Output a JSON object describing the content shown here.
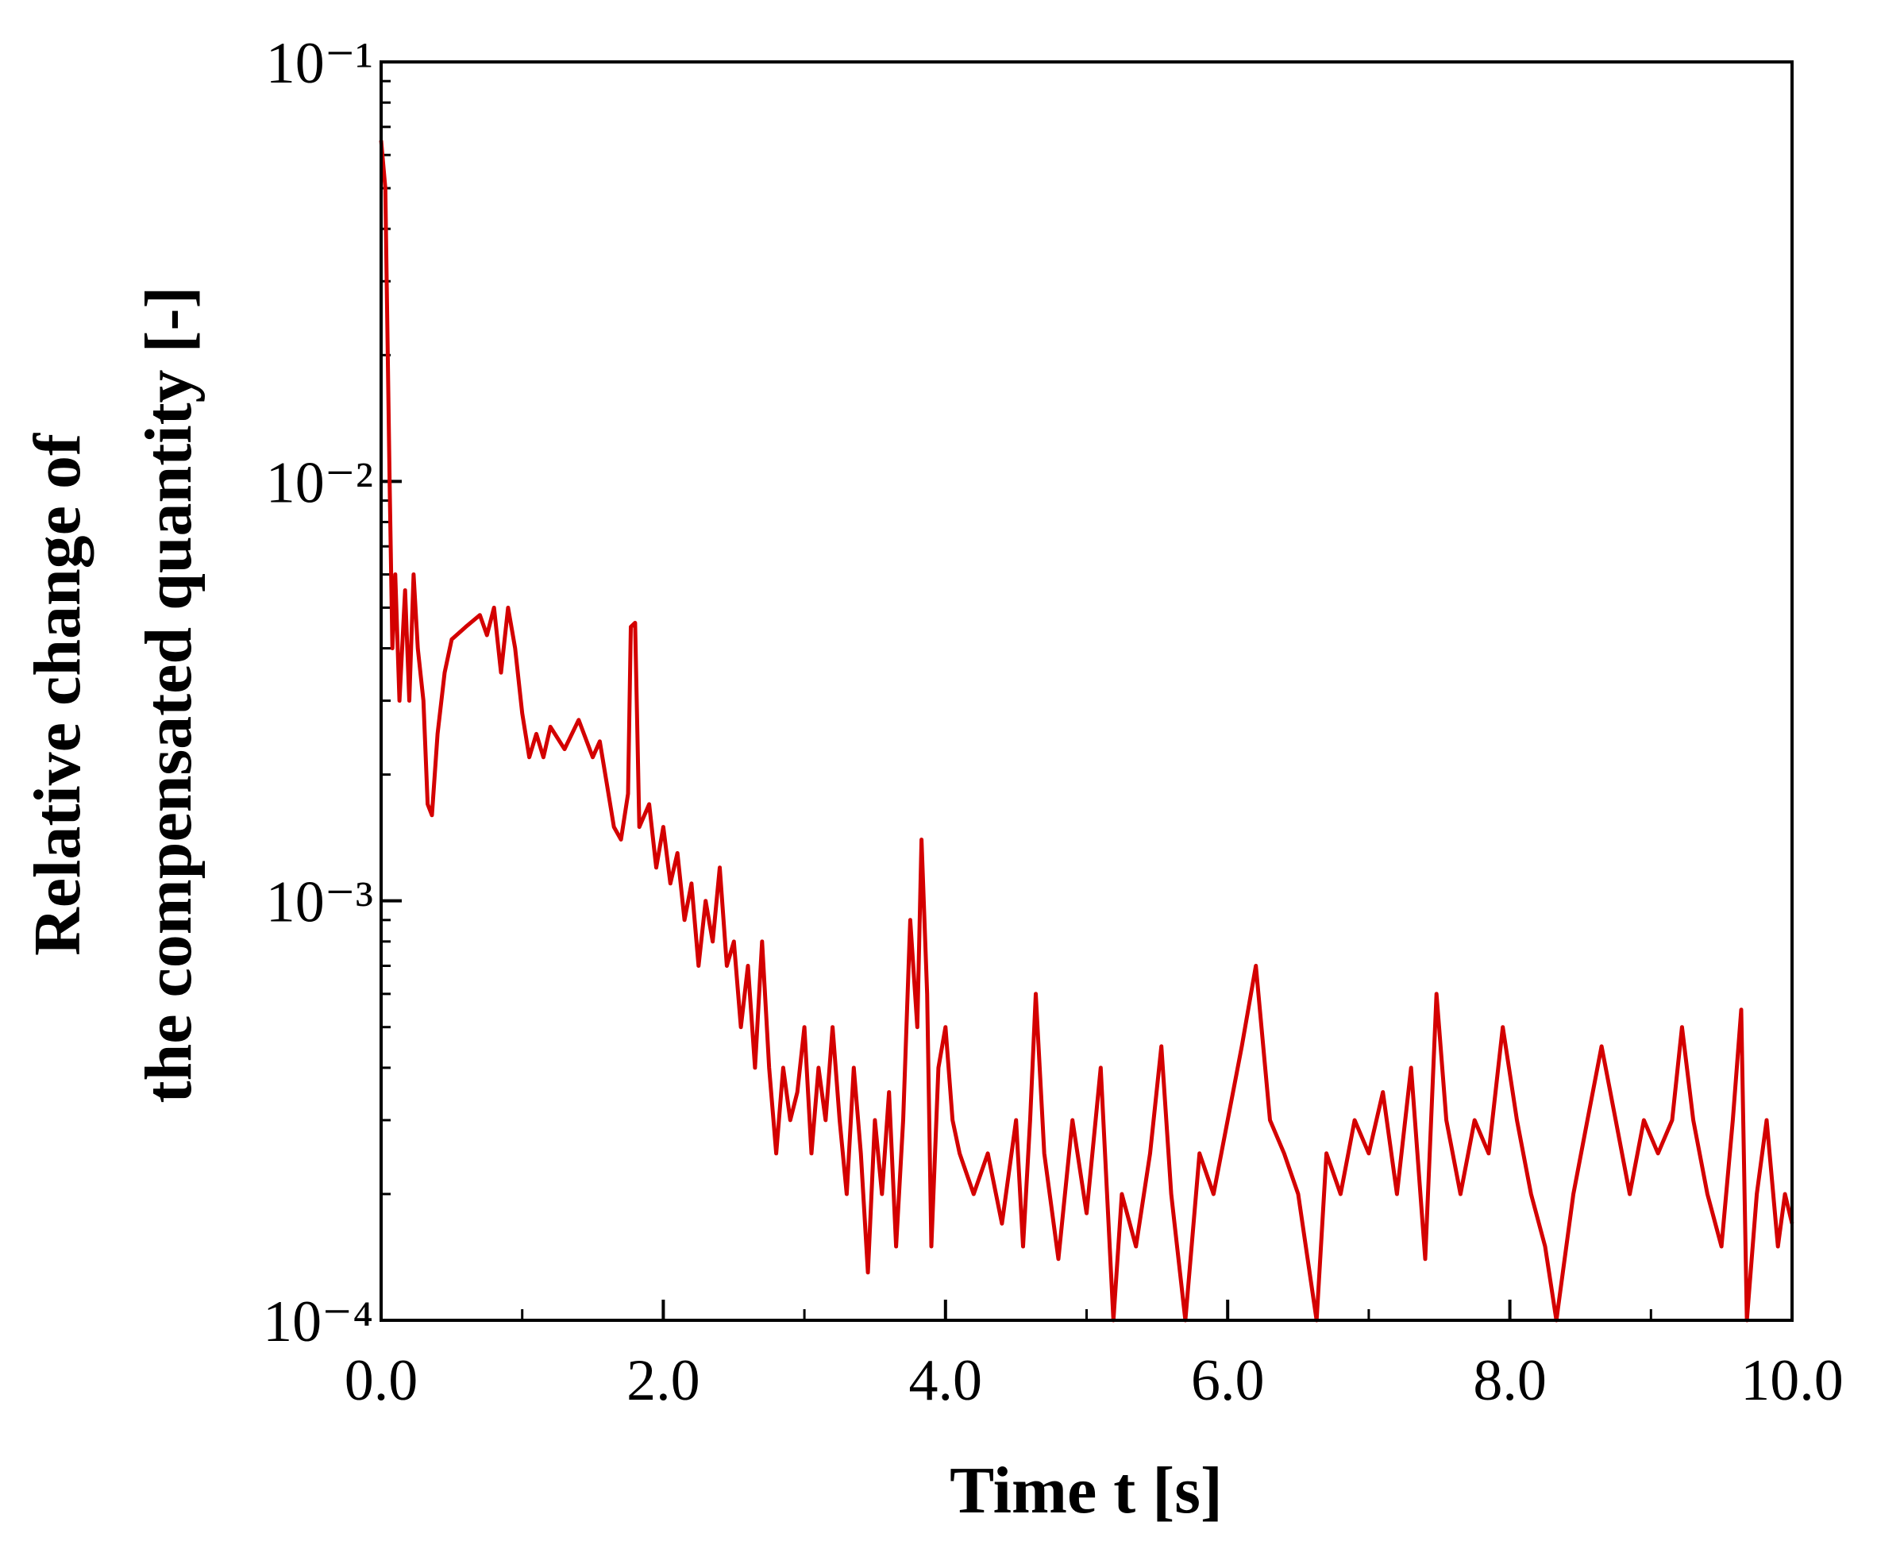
{
  "chart_data": {
    "type": "line",
    "xlabel": "Time t [s]",
    "ylabel": [
      "Relative change of",
      "the compensated quantity [-]"
    ],
    "log_y": true,
    "xlim": [
      0,
      10
    ],
    "ylim": [
      0.0001,
      0.1
    ],
    "xticks": [
      {
        "value": 0,
        "label": "0.0"
      },
      {
        "value": 2,
        "label": "2.0"
      },
      {
        "value": 4,
        "label": "4.0"
      },
      {
        "value": 6,
        "label": "6.0"
      },
      {
        "value": 8,
        "label": "8.0"
      },
      {
        "value": 10,
        "label": "10.0"
      }
    ],
    "yticks": [
      {
        "value": 0.0001,
        "label": "10⁻⁴"
      },
      {
        "value": 0.001,
        "label": "10⁻³"
      },
      {
        "value": 0.01,
        "label": "10⁻²"
      },
      {
        "value": 0.1,
        "label": "10⁻¹"
      }
    ],
    "x": [
      0,
      0.03,
      0.06,
      0.08,
      0.1,
      0.13,
      0.17,
      0.2,
      0.23,
      0.26,
      0.3,
      0.33,
      0.36,
      0.4,
      0.45,
      0.5,
      0.6,
      0.7,
      0.75,
      0.8,
      0.85,
      0.9,
      0.95,
      1.0,
      1.05,
      1.1,
      1.15,
      1.2,
      1.3,
      1.4,
      1.5,
      1.55,
      1.6,
      1.65,
      1.7,
      1.75,
      1.77,
      1.8,
      1.83,
      1.9,
      1.95,
      2.0,
      2.05,
      2.1,
      2.15,
      2.2,
      2.25,
      2.3,
      2.35,
      2.4,
      2.45,
      2.5,
      2.55,
      2.6,
      2.65,
      2.7,
      2.75,
      2.8,
      2.85,
      2.9,
      2.95,
      3.0,
      3.05,
      3.1,
      3.15,
      3.2,
      3.25,
      3.3,
      3.35,
      3.4,
      3.45,
      3.5,
      3.55,
      3.6,
      3.65,
      3.7,
      3.75,
      3.8,
      3.83,
      3.87,
      3.9,
      3.95,
      4.0,
      4.05,
      4.1,
      4.2,
      4.3,
      4.4,
      4.5,
      4.55,
      4.6,
      4.64,
      4.7,
      4.8,
      4.9,
      5.0,
      5.1,
      5.19,
      5.25,
      5.35,
      5.45,
      5.53,
      5.6,
      5.7,
      5.8,
      5.9,
      6.0,
      6.1,
      6.2,
      6.3,
      6.4,
      6.5,
      6.63,
      6.7,
      6.8,
      6.9,
      7.0,
      7.1,
      7.2,
      7.3,
      7.4,
      7.48,
      7.55,
      7.65,
      7.75,
      7.85,
      7.95,
      8.05,
      8.15,
      8.25,
      8.33,
      8.45,
      8.55,
      8.65,
      8.75,
      8.85,
      8.95,
      9.05,
      9.15,
      9.22,
      9.3,
      9.4,
      9.5,
      9.58,
      9.64,
      9.68,
      9.75,
      9.82,
      9.9,
      9.95,
      10.0
    ],
    "series": [
      {
        "color": "#d40000",
        "values": [
          0.065,
          0.05,
          0.01,
          0.004,
          0.006,
          0.003,
          0.0055,
          0.003,
          0.006,
          0.004,
          0.003,
          0.0017,
          0.0016,
          0.0025,
          0.0035,
          0.0042,
          0.0045,
          0.0048,
          0.0043,
          0.005,
          0.0035,
          0.005,
          0.004,
          0.0028,
          0.0022,
          0.0025,
          0.0022,
          0.0026,
          0.0023,
          0.0027,
          0.0022,
          0.0024,
          0.0019,
          0.0015,
          0.0014,
          0.0018,
          0.0045,
          0.0046,
          0.0015,
          0.0017,
          0.0012,
          0.0015,
          0.0011,
          0.0013,
          0.0009,
          0.0011,
          0.0007,
          0.001,
          0.0008,
          0.0012,
          0.0007,
          0.0008,
          0.0005,
          0.0007,
          0.0004,
          0.0008,
          0.0004,
          0.00025,
          0.0004,
          0.0003,
          0.00035,
          0.0005,
          0.00025,
          0.0004,
          0.0003,
          0.0005,
          0.0003,
          0.0002,
          0.0004,
          0.00025,
          0.00013,
          0.0003,
          0.0002,
          0.00035,
          0.00015,
          0.0003,
          0.0009,
          0.0005,
          0.0014,
          0.0006,
          0.00015,
          0.0004,
          0.0005,
          0.0003,
          0.00025,
          0.0002,
          0.00025,
          0.00017,
          0.0003,
          0.00015,
          0.0003,
          0.0006,
          0.00025,
          0.00014,
          0.0003,
          0.00018,
          0.0004,
          0.0001,
          0.0002,
          0.00015,
          0.00025,
          0.00045,
          0.0002,
          0.0001,
          0.00025,
          0.0002,
          0.0003,
          0.00045,
          0.0007,
          0.0003,
          0.00025,
          0.0002,
          0.0001,
          0.00025,
          0.0002,
          0.0003,
          0.00025,
          0.00035,
          0.0002,
          0.0004,
          0.00014,
          0.0006,
          0.0003,
          0.0002,
          0.0003,
          0.00025,
          0.0005,
          0.0003,
          0.0002,
          0.00015,
          0.0001,
          0.0002,
          0.0003,
          0.00045,
          0.0003,
          0.0002,
          0.0003,
          0.00025,
          0.0003,
          0.0005,
          0.0003,
          0.0002,
          0.00015,
          0.0003,
          0.00055,
          0.0001,
          0.0002,
          0.0003,
          0.00015,
          0.0002,
          0.00017
        ]
      }
    ]
  }
}
